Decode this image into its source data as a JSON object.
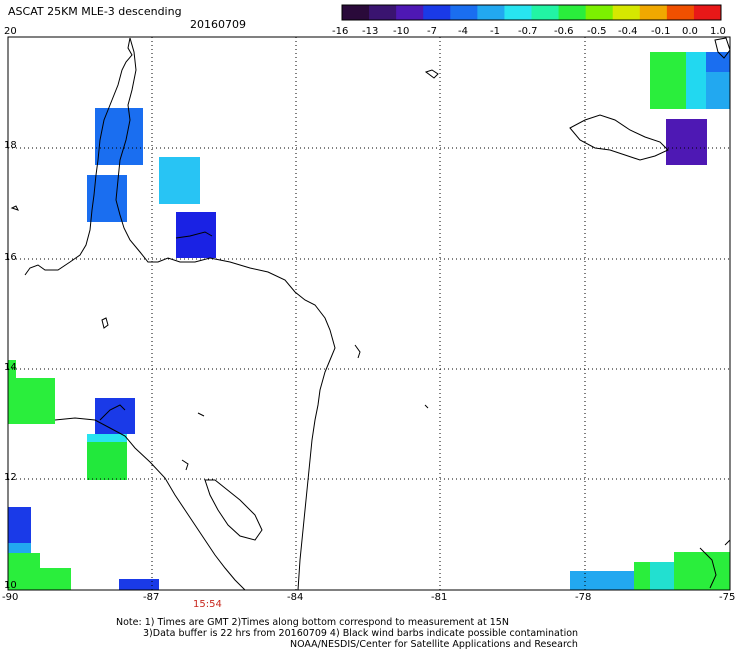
{
  "header": {
    "title": "ASCAT 25KM MLE-3 descending",
    "date": "20160709"
  },
  "colorbar": {
    "tick_labels": [
      "-16",
      "-13",
      "-10",
      "-7",
      "-4",
      "-1",
      "-0.7",
      "-0.6",
      "-0.5",
      "-0.4",
      "-0.1",
      "0.0",
      "1.0"
    ],
    "colors": [
      "#2a0a3a",
      "#3a1470",
      "#4e18b4",
      "#1a3ae8",
      "#1a6ef0",
      "#22a8f0",
      "#28e4f0",
      "#22f4a4",
      "#2aee3c",
      "#7cf000",
      "#d6e800",
      "#f0a800",
      "#f05000",
      "#e81818"
    ]
  },
  "map": {
    "lat_labels": [
      "20",
      "18",
      "16",
      "14",
      "12",
      "10"
    ],
    "lon_labels": [
      "-90",
      "-87",
      "-84",
      "-81",
      "-78",
      "-75"
    ],
    "time_label": "15:54",
    "grid": true
  },
  "footer": {
    "line1": "Note: 1) Times are GMT 2)Times along bottom correspond to measurement at 15N",
    "line2": "3)Data buffer is 22 hrs from 20160709 4) Black wind barbs indicate possible contamination",
    "line3": "NOAA/NESDIS/Center for Satellite Applications and Research"
  }
}
